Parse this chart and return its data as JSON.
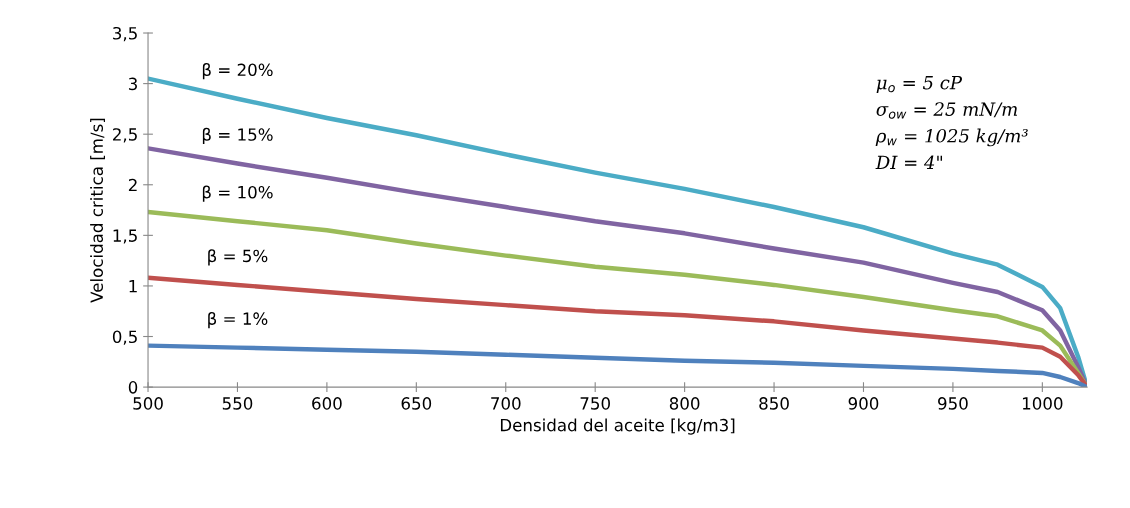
{
  "chart_data": {
    "type": "line",
    "xlabel": "Densidad del aceite [kg/m3]",
    "ylabel": "Velocidad critica [m/s]",
    "x": [
      500,
      550,
      600,
      650,
      700,
      750,
      800,
      850,
      900,
      950,
      975,
      1000,
      1010,
      1020,
      1025
    ],
    "series": [
      {
        "name": "β = 20%",
        "color": "#4bacc6",
        "values": [
          3.05,
          2.85,
          2.66,
          2.49,
          2.3,
          2.12,
          1.96,
          1.78,
          1.58,
          1.32,
          1.21,
          0.99,
          0.78,
          0.3,
          0
        ]
      },
      {
        "name": "β = 15%",
        "color": "#8064a2",
        "values": [
          2.36,
          2.21,
          2.07,
          1.92,
          1.78,
          1.64,
          1.52,
          1.37,
          1.23,
          1.03,
          0.94,
          0.76,
          0.56,
          0.2,
          0
        ]
      },
      {
        "name": "β = 10%",
        "color": "#9bbb59",
        "values": [
          1.73,
          1.64,
          1.55,
          1.42,
          1.3,
          1.19,
          1.11,
          1.01,
          0.89,
          0.76,
          0.7,
          0.56,
          0.41,
          0.14,
          0
        ]
      },
      {
        "name": "β = 5%",
        "color": "#c0504d",
        "values": [
          1.08,
          1.01,
          0.94,
          0.87,
          0.81,
          0.75,
          0.71,
          0.65,
          0.56,
          0.48,
          0.44,
          0.39,
          0.3,
          0.12,
          0
        ]
      },
      {
        "name": "β = 1%",
        "color": "#4f81bd",
        "values": [
          0.41,
          0.39,
          0.37,
          0.35,
          0.32,
          0.29,
          0.26,
          0.24,
          0.21,
          0.18,
          0.16,
          0.14,
          0.1,
          0.04,
          0
        ]
      }
    ],
    "xlim": [
      500,
      1025
    ],
    "xticks": [
      500,
      550,
      600,
      650,
      700,
      750,
      800,
      850,
      900,
      950,
      1000
    ],
    "ylim": [
      0,
      3.5
    ],
    "yticks": [
      0,
      {
        "value": 0.5,
        "label": "0,5"
      },
      1,
      {
        "value": 1.5,
        "label": "1,5"
      },
      2,
      {
        "value": 2.5,
        "label": "2,5"
      },
      3,
      {
        "value": 3.5,
        "label": "3,5"
      }
    ],
    "annotations": [
      "μ$_{o}$ = 5 cP",
      "σ$_{ow}$ = 25 mN/m",
      "ρ$_{w}$ = 1025 kg/m³",
      "DI = 4\""
    ],
    "grid": false,
    "legend": false,
    "marker": "none",
    "line_style": "solid"
  }
}
